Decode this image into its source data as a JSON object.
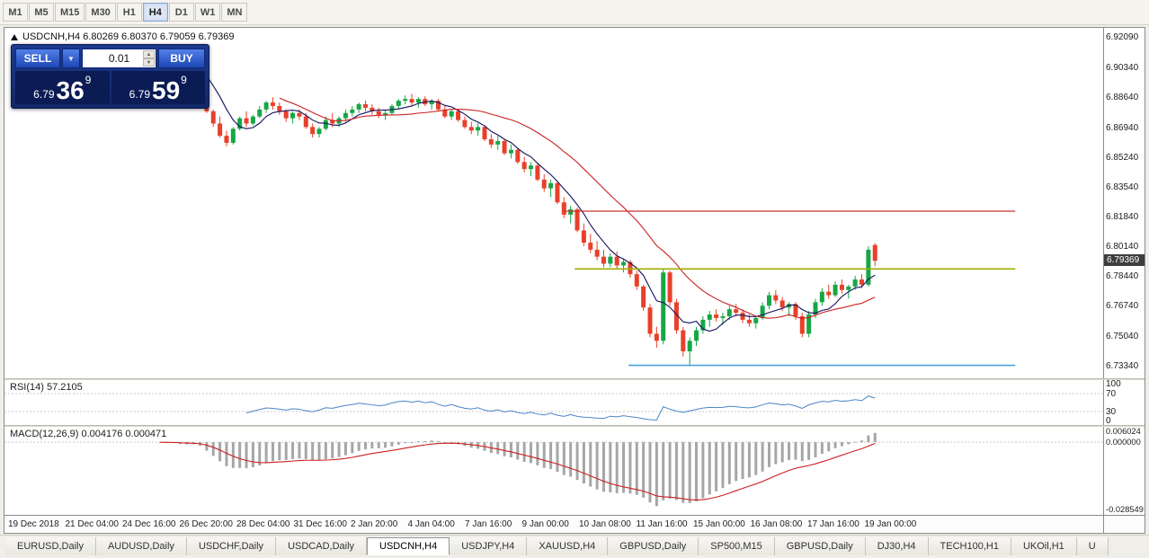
{
  "toolbar": {
    "timeframes": [
      {
        "label": "M1",
        "active": false
      },
      {
        "label": "M5",
        "active": false
      },
      {
        "label": "M15",
        "active": false
      },
      {
        "label": "M30",
        "active": false
      },
      {
        "label": "H1",
        "active": false
      },
      {
        "label": "H4",
        "active": true
      },
      {
        "label": "D1",
        "active": false
      },
      {
        "label": "W1",
        "active": false
      },
      {
        "label": "MN",
        "active": false
      }
    ]
  },
  "chart": {
    "title_line": "USDCNH,H4 6.80269 6.80370 6.79059 6.79369"
  },
  "trade_panel": {
    "sell_label": "SELL",
    "buy_label": "BUY",
    "lot_value": "0.01",
    "dropdown_icon": "▼",
    "spin_up": "▲",
    "spin_down": "▼",
    "sell_price": {
      "prefix": "6.79",
      "big": "36",
      "sup": "9"
    },
    "buy_price": {
      "prefix": "6.79",
      "big": "59",
      "sup": "9"
    }
  },
  "price_badge": "6.79369",
  "indicators": {
    "rsi_label": "RSI(14) 57.2105",
    "rsi_ticks": [
      "100",
      "70",
      "30",
      "0"
    ],
    "macd_label": "MACD(12,26,9) 0.004176 0.000471",
    "macd_ticks": [
      "0.006024",
      "0.000000",
      "-0.028549"
    ]
  },
  "time_axis": {
    "labels": [
      "19 Dec 2018",
      "21 Dec 04:00",
      "24 Dec 16:00",
      "26 Dec 20:00",
      "28 Dec 04:00",
      "31 Dec 16:00",
      "2 Jan 20:00",
      "4 Jan 04:00",
      "7 Jan 16:00",
      "9 Jan 00:00",
      "10 Jan 08:00",
      "11 Jan 16:00",
      "15 Jan 00:00",
      "16 Jan 08:00",
      "17 Jan 16:00",
      "19 Jan 00:00"
    ]
  },
  "tabs": [
    {
      "label": "EURUSD,Daily",
      "active": false
    },
    {
      "label": "AUDUSD,Daily",
      "active": false
    },
    {
      "label": "USDCHF,Daily",
      "active": false
    },
    {
      "label": "USDCAD,Daily",
      "active": false
    },
    {
      "label": "USDCNH,H4",
      "active": true
    },
    {
      "label": "USDJPY,H4",
      "active": false
    },
    {
      "label": "XAUUSD,H4",
      "active": false
    },
    {
      "label": "GBPUSD,Daily",
      "active": false
    },
    {
      "label": "SP500,M15",
      "active": false
    },
    {
      "label": "GBPUSD,Daily",
      "active": false
    },
    {
      "label": "DJ30,H4",
      "active": false
    },
    {
      "label": "TECH100,H1",
      "active": false
    },
    {
      "label": "UKOil,H1",
      "active": false
    },
    {
      "label": "U",
      "active": false
    }
  ],
  "colors": {
    "candle_up": "#17a646",
    "candle_down": "#e8402a",
    "ma_fast": "#11115e",
    "ma_slow": "#cc2020",
    "rsi_line": "#4a86c8",
    "macd_hist": "#a6a6a6",
    "macd_signal": "#cc2020",
    "hline_red": "#cc3333",
    "hline_olive": "#9fae00",
    "hline_blue": "#4aa3d8"
  },
  "chart_data": {
    "type": "candlestick",
    "symbol": "USDCNH",
    "timeframe": "H4",
    "ohlc_display": {
      "open": "6.80269",
      "high": "6.80370",
      "low": "6.79059",
      "close": "6.79369"
    },
    "ylim": [
      6.7266,
      6.9266
    ],
    "price_ticks": [
      "6.92090",
      "6.90340",
      "6.88640",
      "6.86940",
      "6.85240",
      "6.83540",
      "6.81840",
      "6.80140",
      "6.78440",
      "6.76740",
      "6.75040",
      "6.73340"
    ],
    "candles": [
      [
        6.91,
        6.915,
        6.905,
        6.908
      ],
      [
        6.908,
        6.912,
        6.903,
        6.905
      ],
      [
        6.905,
        6.91,
        6.902,
        6.908
      ],
      [
        6.908,
        6.913,
        6.904,
        6.906
      ],
      [
        6.906,
        6.909,
        6.9,
        6.902
      ],
      [
        6.902,
        6.906,
        6.898,
        6.904
      ],
      [
        6.904,
        6.908,
        6.9,
        6.906
      ],
      [
        6.906,
        6.907,
        6.896,
        6.898
      ],
      [
        6.897,
        6.8985,
        6.878,
        6.879
      ],
      [
        6.879,
        6.88,
        6.87,
        6.872
      ],
      [
        6.872,
        6.876,
        6.864,
        6.865
      ],
      [
        6.865,
        6.868,
        6.859,
        6.861
      ],
      [
        6.861,
        6.87,
        6.86,
        6.869
      ],
      [
        6.869,
        6.876,
        6.868,
        6.875
      ],
      [
        6.875,
        6.879,
        6.87,
        6.872
      ],
      [
        6.872,
        6.877,
        6.871,
        6.876
      ],
      [
        6.876,
        6.882,
        6.875,
        6.88
      ],
      [
        6.88,
        6.885,
        6.878,
        6.884
      ],
      [
        6.884,
        6.887,
        6.88,
        6.882
      ],
      [
        6.882,
        6.884,
        6.877,
        6.879
      ],
      [
        6.879,
        6.88,
        6.873,
        6.875
      ],
      [
        6.875,
        6.879,
        6.872,
        6.878
      ],
      [
        6.878,
        6.88,
        6.874,
        6.876
      ],
      [
        6.876,
        6.878,
        6.869,
        6.87
      ],
      [
        6.87,
        6.872,
        6.864,
        6.866
      ],
      [
        6.866,
        6.87,
        6.864,
        6.869
      ],
      [
        6.869,
        6.876,
        6.868,
        6.874
      ],
      [
        6.874,
        6.878,
        6.87,
        6.872
      ],
      [
        6.872,
        6.876,
        6.87,
        6.875
      ],
      [
        6.875,
        6.88,
        6.873,
        6.878
      ],
      [
        6.878,
        6.882,
        6.876,
        6.88
      ],
      [
        6.88,
        6.884,
        6.878,
        6.883
      ],
      [
        6.883,
        6.885,
        6.879,
        6.881
      ],
      [
        6.881,
        6.883,
        6.877,
        6.879
      ],
      [
        6.879,
        6.881,
        6.875,
        6.877
      ],
      [
        6.877,
        6.88,
        6.874,
        6.878
      ],
      [
        6.878,
        6.883,
        6.877,
        6.882
      ],
      [
        6.882,
        6.886,
        6.88,
        6.885
      ],
      [
        6.885,
        6.888,
        6.883,
        6.886
      ],
      [
        6.886,
        6.889,
        6.882,
        6.884
      ],
      [
        6.884,
        6.887,
        6.881,
        6.886
      ],
      [
        6.886,
        6.8875,
        6.882,
        6.883
      ],
      [
        6.883,
        6.886,
        6.88,
        6.885
      ],
      [
        6.885,
        6.886,
        6.879,
        6.88
      ],
      [
        6.88,
        6.882,
        6.875,
        6.876
      ],
      [
        6.876,
        6.88,
        6.874,
        6.879
      ],
      [
        6.879,
        6.88,
        6.873,
        6.874
      ],
      [
        6.874,
        6.876,
        6.869,
        6.87
      ],
      [
        6.87,
        6.873,
        6.866,
        6.868
      ],
      [
        6.868,
        6.872,
        6.865,
        6.87
      ],
      [
        6.87,
        6.871,
        6.862,
        6.863
      ],
      [
        6.863,
        6.866,
        6.858,
        6.86
      ],
      [
        6.86,
        6.865,
        6.857,
        6.862
      ],
      [
        6.862,
        6.863,
        6.854,
        6.855
      ],
      [
        6.855,
        6.86,
        6.852,
        6.857
      ],
      [
        6.857,
        6.858,
        6.849,
        6.85
      ],
      [
        6.85,
        6.853,
        6.844,
        6.846
      ],
      [
        6.846,
        6.85,
        6.842,
        6.848
      ],
      [
        6.848,
        6.849,
        6.839,
        6.84
      ],
      [
        6.84,
        6.843,
        6.833,
        6.835
      ],
      [
        6.835,
        6.84,
        6.83,
        6.838
      ],
      [
        6.838,
        6.839,
        6.826,
        6.827
      ],
      [
        6.827,
        6.83,
        6.818,
        6.82
      ],
      [
        6.82,
        6.825,
        6.815,
        6.823
      ],
      [
        6.823,
        6.824,
        6.81,
        6.811
      ],
      [
        6.811,
        6.815,
        6.802,
        6.804
      ],
      [
        6.804,
        6.809,
        6.798,
        6.8
      ],
      [
        6.8,
        6.805,
        6.794,
        6.796
      ],
      [
        6.796,
        6.8,
        6.79,
        6.792
      ],
      [
        6.792,
        6.798,
        6.79,
        6.796
      ],
      [
        6.796,
        6.799,
        6.789,
        6.791
      ],
      [
        6.791,
        6.795,
        6.787,
        6.793
      ],
      [
        6.793,
        6.794,
        6.784,
        6.786
      ],
      [
        6.786,
        6.788,
        6.777,
        6.779
      ],
      [
        6.779,
        6.78,
        6.765,
        6.767
      ],
      [
        6.767,
        6.769,
        6.75,
        6.752
      ],
      [
        6.752,
        6.756,
        6.744,
        6.748
      ],
      [
        6.748,
        6.789,
        6.746,
        6.787
      ],
      [
        6.787,
        6.788,
        6.768,
        6.77
      ],
      [
        6.77,
        6.772,
        6.752,
        6.754
      ],
      [
        6.754,
        6.756,
        6.739,
        6.742
      ],
      [
        6.742,
        6.75,
        6.7334,
        6.748
      ],
      [
        6.748,
        6.756,
        6.745,
        6.754
      ],
      [
        6.754,
        6.762,
        6.752,
        6.76
      ],
      [
        6.76,
        6.765,
        6.756,
        6.763
      ],
      [
        6.763,
        6.766,
        6.759,
        6.761
      ],
      [
        6.761,
        6.764,
        6.757,
        6.762
      ],
      [
        6.762,
        6.768,
        6.76,
        6.766
      ],
      [
        6.766,
        6.769,
        6.762,
        6.764
      ],
      [
        6.764,
        6.766,
        6.758,
        6.76
      ],
      [
        6.76,
        6.763,
        6.756,
        6.758
      ],
      [
        6.758,
        6.762,
        6.755,
        6.761
      ],
      [
        6.761,
        6.77,
        6.76,
        6.768
      ],
      [
        6.768,
        6.776,
        6.766,
        6.774
      ],
      [
        6.774,
        6.777,
        6.769,
        6.771
      ],
      [
        6.771,
        6.773,
        6.765,
        6.767
      ],
      [
        6.767,
        6.77,
        6.762,
        6.769
      ],
      [
        6.769,
        6.77,
        6.76,
        6.762
      ],
      [
        6.762,
        6.764,
        6.75,
        6.752
      ],
      [
        6.752,
        6.765,
        6.75,
        6.763
      ],
      [
        6.763,
        6.772,
        6.761,
        6.77
      ],
      [
        6.77,
        6.778,
        6.768,
        6.776
      ],
      [
        6.776,
        6.78,
        6.772,
        6.774
      ],
      [
        6.774,
        6.782,
        6.773,
        6.78
      ],
      [
        6.78,
        6.783,
        6.775,
        6.777
      ],
      [
        6.777,
        6.78,
        6.772,
        6.779
      ],
      [
        6.779,
        6.785,
        6.777,
        6.783
      ],
      [
        6.783,
        6.786,
        6.778,
        6.78
      ],
      [
        6.78,
        6.802,
        6.779,
        6.8
      ],
      [
        6.80269,
        6.8037,
        6.79059,
        6.79369
      ]
    ],
    "hlines": [
      {
        "price": 6.822,
        "color": "#cc3333",
        "from": 0.51,
        "to": 0.92,
        "width": 1.3
      },
      {
        "price": 6.789,
        "color": "#9fae00",
        "from": 0.519,
        "to": 0.92,
        "width": 1.6
      },
      {
        "price": 6.734,
        "color": "#4aa3d8",
        "from": 0.568,
        "to": 0.92,
        "width": 1.6
      }
    ],
    "moving_averages": [
      {
        "period": 6,
        "color": "#11115e"
      },
      {
        "period": 20,
        "color": "#cc2020"
      }
    ],
    "rsi": {
      "period": 14,
      "value": 57.2105,
      "levels": [
        70,
        30
      ],
      "range": [
        0,
        100
      ]
    },
    "macd": {
      "fast": 12,
      "slow": 26,
      "signal": 9,
      "values": [
        0.004176,
        0.000471
      ],
      "ylim": [
        -0.028549,
        0.006024
      ]
    }
  }
}
